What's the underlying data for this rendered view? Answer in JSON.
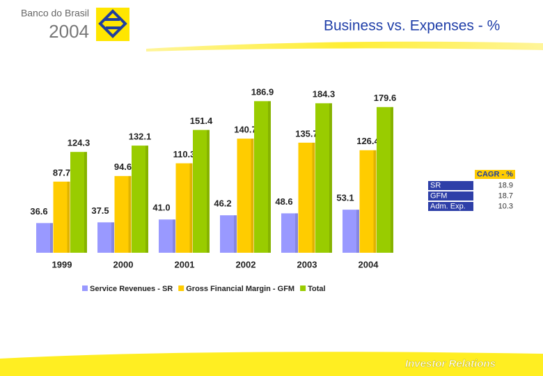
{
  "header": {
    "brand": "Banco do Brasil",
    "year": "2004"
  },
  "footer": {
    "text": "Investor Relations"
  },
  "cagr_table": {
    "header": "CAGR - %",
    "rows": [
      [
        "SR",
        "18.9"
      ],
      [
        "GFM",
        "18.7"
      ],
      [
        "Adm. Exp.",
        "10.3"
      ]
    ]
  },
  "chart_data": {
    "type": "bar",
    "title": "Business vs. Expenses - %",
    "categories": [
      "1999",
      "2000",
      "2001",
      "2002",
      "2003",
      "2004"
    ],
    "series": [
      {
        "name": "Service Revenues - SR",
        "color": "#9999ff",
        "values": [
          36.6,
          37.5,
          41.0,
          46.2,
          48.6,
          53.1
        ],
        "value_labels": [
          "36.6",
          "37.5",
          "41.0",
          "46.2",
          "48.6",
          "53.1"
        ]
      },
      {
        "name": "Gross Financial Margin - GFM",
        "color": "#ffcc00",
        "values": [
          87.7,
          94.6,
          110.3,
          140.7,
          135.7,
          126.4
        ]
      },
      {
        "name": "Total",
        "color": "#99cc00",
        "values": [
          124.3,
          132.1,
          151.4,
          186.9,
          184.3,
          179.6
        ]
      }
    ],
    "ylim": [
      0,
      200
    ]
  }
}
